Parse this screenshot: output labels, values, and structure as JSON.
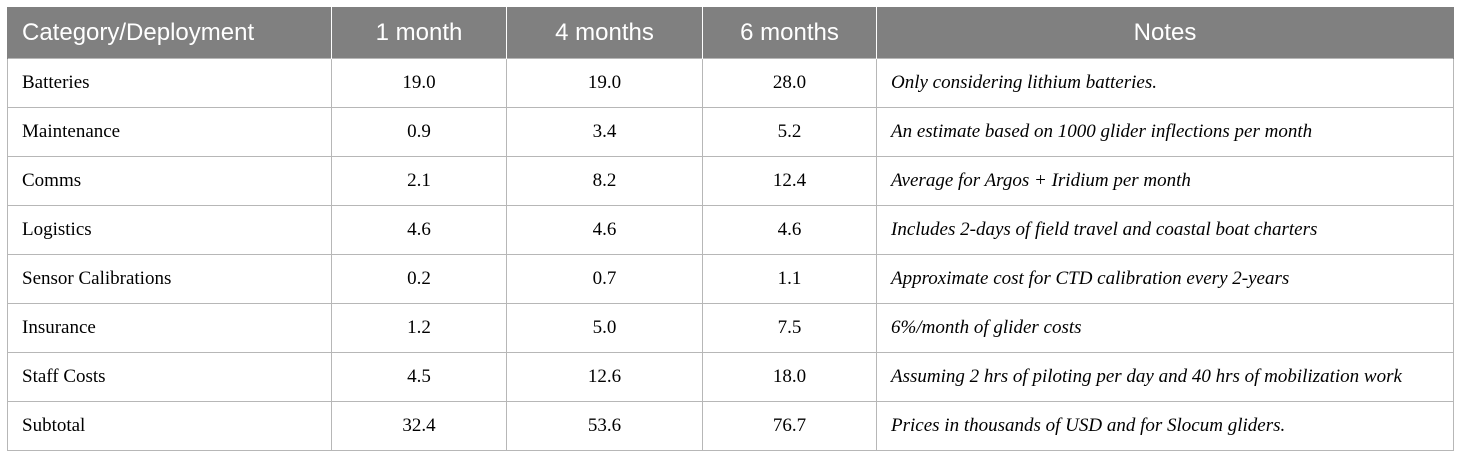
{
  "table": {
    "headers": [
      "Category/Deployment",
      "1 month",
      "4 months",
      "6 months",
      "Notes"
    ],
    "rows": [
      {
        "category": "Batteries",
        "m1": "19.0",
        "m4": "19.0",
        "m6": "28.0",
        "notes": "Only considering lithium batteries."
      },
      {
        "category": "Maintenance",
        "m1": "0.9",
        "m4": "3.4",
        "m6": "5.2",
        "notes": "An estimate based on 1000 glider inflections per month"
      },
      {
        "category": "Comms",
        "m1": "2.1",
        "m4": "8.2",
        "m6": "12.4",
        "notes": "Average for Argos + Iridium per month"
      },
      {
        "category": "Logistics",
        "m1": "4.6",
        "m4": "4.6",
        "m6": "4.6",
        "notes": "Includes 2-days of field travel and coastal boat charters"
      },
      {
        "category": "Sensor Calibrations",
        "m1": "0.2",
        "m4": "0.7",
        "m6": "1.1",
        "notes": "Approximate cost for CTD calibration every 2-years"
      },
      {
        "category": "Insurance",
        "m1": "1.2",
        "m4": "5.0",
        "m6": "7.5",
        "notes": "6%/month of glider costs"
      },
      {
        "category": "Staff Costs",
        "m1": "4.5",
        "m4": "12.6",
        "m6": "18.0",
        "notes": "Assuming 2 hrs of piloting per day and 40 hrs of mobilization work"
      },
      {
        "category": "Subtotal",
        "m1": "32.4",
        "m4": "53.6",
        "m6": "76.7",
        "notes": "Prices in thousands of USD and for Slocum gliders."
      }
    ]
  }
}
